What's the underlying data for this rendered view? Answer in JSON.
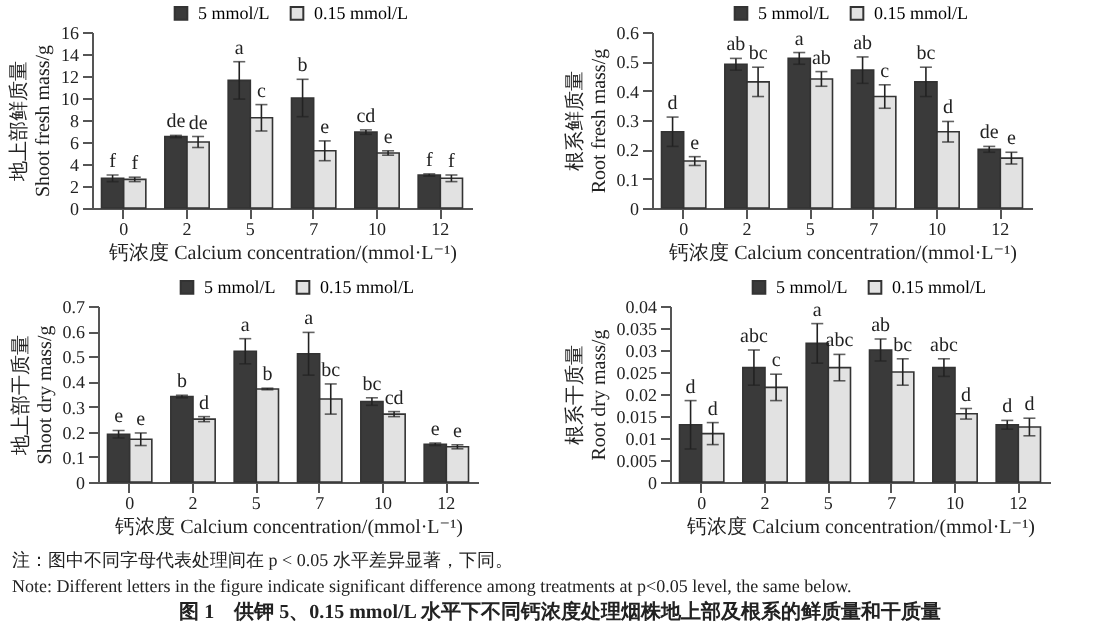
{
  "chart_data": [
    {
      "type": "bar",
      "xlabel": "钙浓度 Calcium concentration/(mmol·L⁻¹)",
      "ylabel": "地上部鲜质量 Shoot fresh mass/g",
      "categories": [
        "0",
        "2",
        "5",
        "7",
        "10",
        "12"
      ],
      "ylim": [
        0,
        16
      ],
      "yticks": [
        0,
        2,
        4,
        6,
        8,
        10,
        12,
        14,
        16
      ],
      "legend": "top right",
      "series": [
        {
          "name": "5 mmol/L",
          "color": "#3a3a3a",
          "values": [
            2.7,
            6.5,
            11.6,
            10.0,
            6.9,
            3.0
          ],
          "errors": [
            0.3,
            0.1,
            1.7,
            1.7,
            0.2,
            0.1
          ],
          "value_labels": [
            "f",
            "de",
            "a",
            "b",
            "cd",
            "f"
          ]
        },
        {
          "name": "0.15 mmol/L",
          "color": "#e2e2e2",
          "values": [
            2.6,
            6.0,
            8.2,
            5.2,
            5.0,
            2.7
          ],
          "errors": [
            0.2,
            0.5,
            1.2,
            0.9,
            0.2,
            0.3
          ],
          "value_labels": [
            "f",
            "de",
            "c",
            "e",
            "e",
            "f"
          ]
        }
      ]
    },
    {
      "type": "bar",
      "xlabel": "钙浓度 Calcium concentration/(mmol·L⁻¹)",
      "ylabel": "根系鲜质量 Root fresh mass/g",
      "categories": [
        "0",
        "2",
        "5",
        "7",
        "10",
        "12"
      ],
      "ylim": [
        0,
        0.6
      ],
      "yticks": [
        0,
        0.1,
        0.2,
        0.3,
        0.4,
        0.5,
        0.6
      ],
      "legend": "top right",
      "series": [
        {
          "name": "5 mmol/L",
          "color": "#3a3a3a",
          "values": [
            0.26,
            0.49,
            0.51,
            0.47,
            0.43,
            0.2
          ],
          "errors": [
            0.05,
            0.02,
            0.02,
            0.045,
            0.05,
            0.01
          ],
          "value_labels": [
            "d",
            "ab",
            "a",
            "ab",
            "bc",
            "de"
          ]
        },
        {
          "name": "0.15 mmol/L",
          "color": "#e2e2e2",
          "values": [
            0.16,
            0.43,
            0.44,
            0.38,
            0.26,
            0.17
          ],
          "errors": [
            0.015,
            0.05,
            0.025,
            0.04,
            0.035,
            0.02
          ],
          "value_labels": [
            "e",
            "bc",
            "ab",
            "c",
            "d",
            "e"
          ]
        }
      ]
    },
    {
      "type": "bar",
      "xlabel": "钙浓度 Calcium concentration/(mmol·L⁻¹)",
      "ylabel": "地上部干质量 Shoot dry mass/g",
      "categories": [
        "0",
        "2",
        "5",
        "7",
        "10",
        "12"
      ],
      "ylim": [
        0,
        0.7
      ],
      "yticks": [
        0,
        0.1,
        0.2,
        0.3,
        0.4,
        0.5,
        0.6,
        0.7
      ],
      "legend": "top right",
      "series": [
        {
          "name": "5 mmol/L",
          "color": "#3a3a3a",
          "values": [
            0.19,
            0.34,
            0.52,
            0.51,
            0.32,
            0.15
          ],
          "errors": [
            0.015,
            0.005,
            0.05,
            0.085,
            0.015,
            0.005
          ],
          "value_labels": [
            "e",
            "b",
            "a",
            "a",
            "bc",
            "e"
          ]
        },
        {
          "name": "0.15 mmol/L",
          "color": "#e2e2e2",
          "values": [
            0.17,
            0.25,
            0.37,
            0.33,
            0.27,
            0.14
          ],
          "errors": [
            0.025,
            0.01,
            0.003,
            0.06,
            0.01,
            0.008
          ],
          "value_labels": [
            "e",
            "d",
            "b",
            "bc",
            "cd",
            "e"
          ]
        }
      ]
    },
    {
      "type": "bar",
      "xlabel": "钙浓度 Calcium concentration/(mmol·L⁻¹)",
      "ylabel": "根系干质量 Root dry mass/g",
      "categories": [
        "0",
        "2",
        "5",
        "7",
        "10",
        "12"
      ],
      "ylim": [
        0,
        0.04
      ],
      "yticks": [
        0,
        0.005,
        0.01,
        0.015,
        0.02,
        0.025,
        0.03,
        0.035,
        0.04
      ],
      "legend": "top right",
      "series": [
        {
          "name": "5 mmol/L",
          "color": "#3a3a3a",
          "values": [
            0.013,
            0.026,
            0.0315,
            0.03,
            0.026,
            0.013
          ],
          "errors": [
            0.0055,
            0.004,
            0.0045,
            0.0025,
            0.002,
            0.001
          ],
          "value_labels": [
            "d",
            "abc",
            "a",
            "ab",
            "abc",
            "d"
          ]
        },
        {
          "name": "0.15 mmol/L",
          "color": "#e2e2e2",
          "values": [
            0.011,
            0.0215,
            0.026,
            0.025,
            0.0155,
            0.0125
          ],
          "errors": [
            0.0025,
            0.003,
            0.003,
            0.003,
            0.0012,
            0.002
          ],
          "value_labels": [
            "d",
            "c",
            "abc",
            "bc",
            "d",
            "d"
          ]
        }
      ]
    },
    {
      "type": "other",
      "annotations": [
        "注：图中不同字母代表处理间在 p < 0.05 水平差异显著，下同。",
        "Note: Different letters in the figure indicate significant difference among treatments at p<0.05 level, the same below.",
        "图 1　供钾 5、0.15 mmol/L 水平下不同钙浓度处理烟株地上部及根系的鲜质量和干质量"
      ]
    }
  ]
}
